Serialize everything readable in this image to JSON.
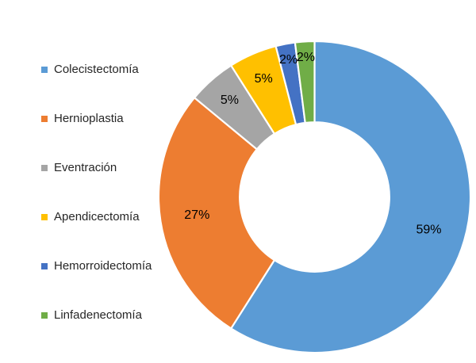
{
  "canvas": {
    "background": "#FFFFFF",
    "data_label_color": "#000000",
    "legend_text_color": "#262626",
    "slice_border_color": "#FFFFFF"
  },
  "chart_data": {
    "type": "pie",
    "subtype": "donut",
    "title": "",
    "categories": [
      "Colecistectomía",
      "Hernioplastia",
      "Eventración",
      "Apendicectomía",
      "Hemorroidectomía",
      "Linfadenectomía"
    ],
    "values": [
      59,
      27,
      5,
      5,
      2,
      2
    ],
    "data_labels": [
      "59%",
      "27%",
      "5%",
      "5%",
      "2%",
      "2%"
    ],
    "colors": [
      "#5B9BD5",
      "#ED7D31",
      "#A5A5A5",
      "#FFC000",
      "#4472C4",
      "#70AD47"
    ],
    "units": "percent",
    "start_angle_deg": 0,
    "direction": "clockwise",
    "donut_hole_ratio": 0.48,
    "legend_position": "left",
    "grid": false
  },
  "legend": {
    "items": [
      {
        "label": "Colecistectomía",
        "color": "#5B9BD5"
      },
      {
        "label": "Hernioplastia",
        "color": "#ED7D31"
      },
      {
        "label": "Eventración",
        "color": "#A5A5A5"
      },
      {
        "label": "Apendicectomía",
        "color": "#FFC000"
      },
      {
        "label": "Hemorroidectomía",
        "color": "#4472C4"
      },
      {
        "label": "Linfadenectomía",
        "color": "#70AD47"
      }
    ]
  }
}
